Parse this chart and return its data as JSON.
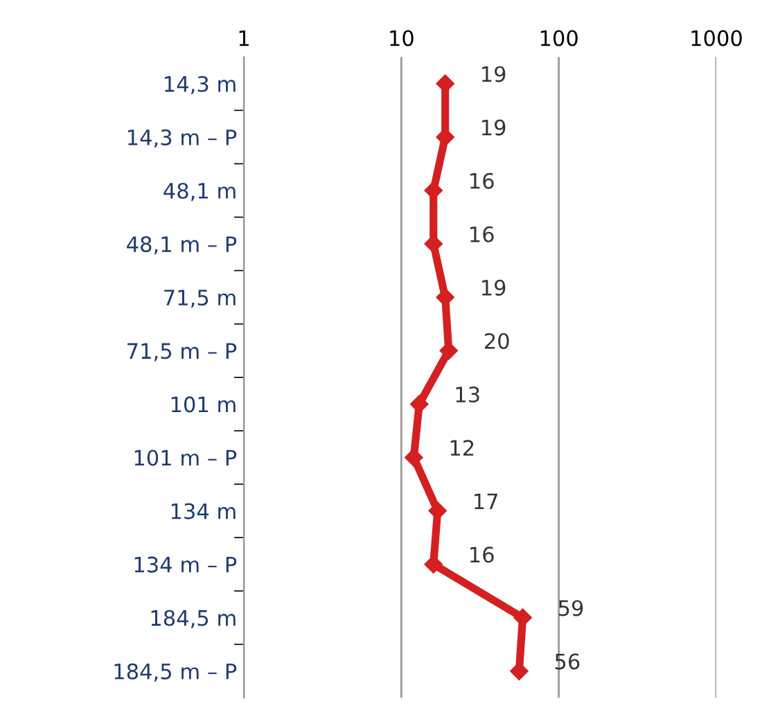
{
  "chart_data": {
    "type": "line",
    "orientation": "horizontal",
    "log": "x",
    "categories": [
      "14,3 m",
      "14,3 m – P",
      "48,1 m",
      "48,1 m – P",
      "71,5 m",
      "71,5 m – P",
      "101 m",
      "101 m – P",
      "134 m",
      "134 m – P",
      "184,5 m",
      "184,5 m – P"
    ],
    "series": [
      {
        "color": "#d42020",
        "values": [
          19,
          19,
          16,
          16,
          19,
          20,
          13,
          12,
          17,
          16,
          59,
          56
        ]
      }
    ],
    "xlim": [
      1,
      1000
    ],
    "xticks": [
      1,
      10,
      100,
      1000
    ],
    "grid": "x",
    "marker": "diamond",
    "line_style": "solid",
    "data_labels": true
  }
}
